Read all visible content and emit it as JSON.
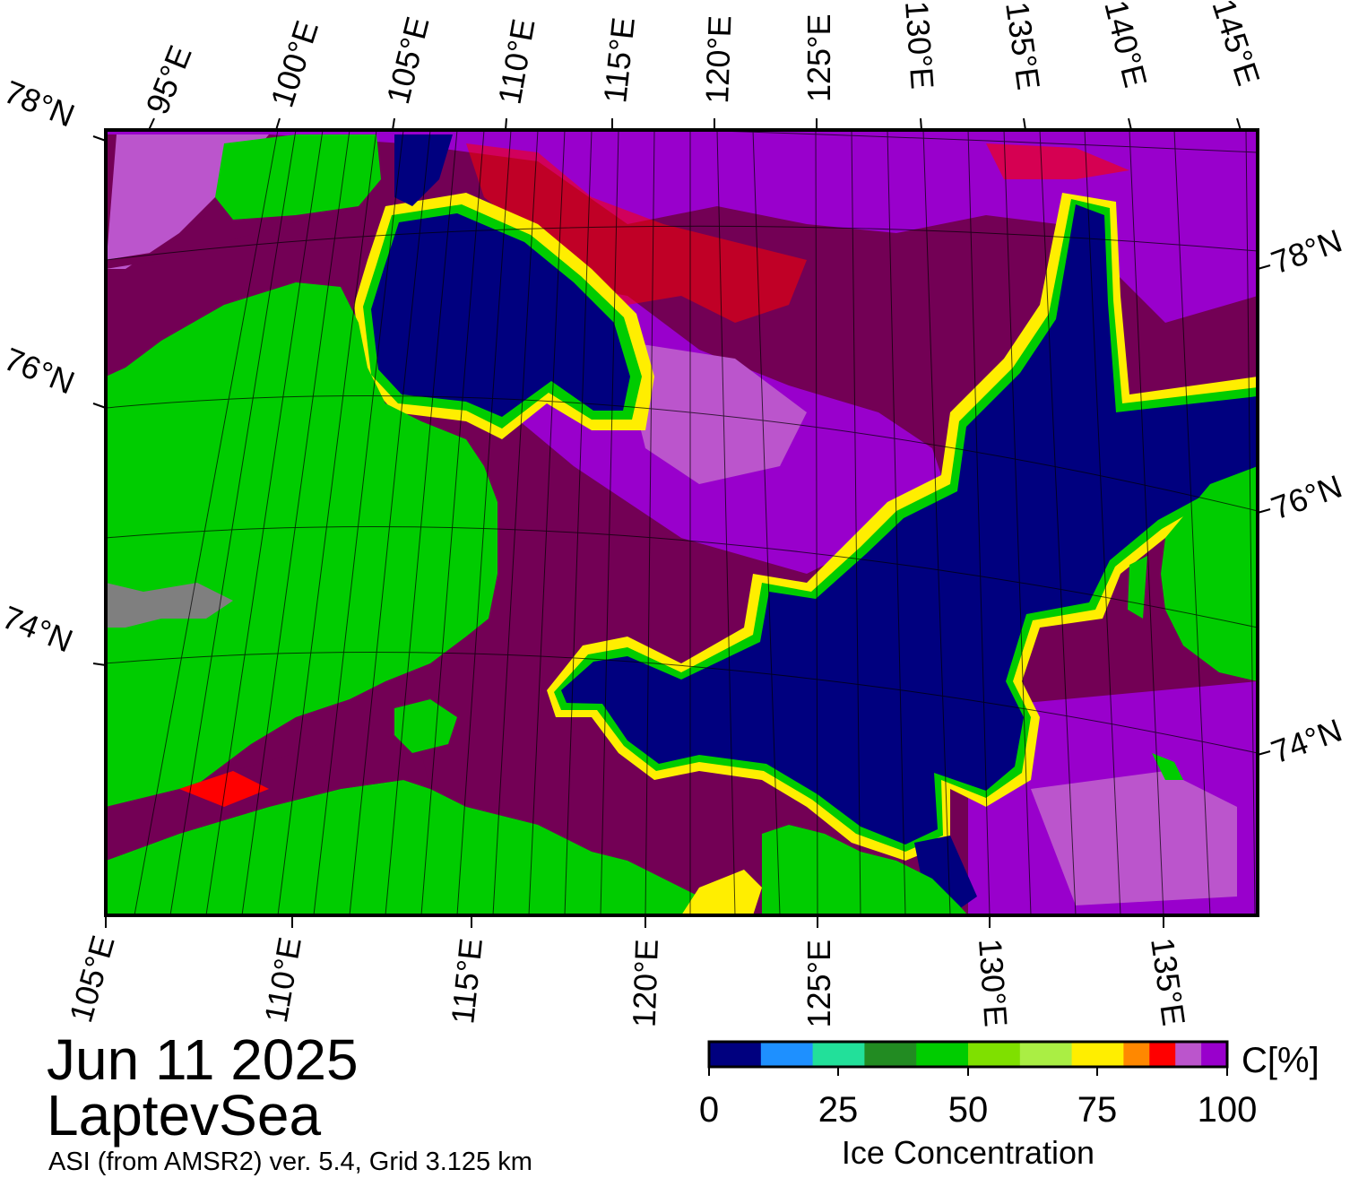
{
  "map": {
    "date": "Jun 11 2025",
    "region": "LaptevSea",
    "source_note": "ASI (from AMSR2) ver. 5.4,  Grid 3.125 km",
    "top_lon_labels": [
      "95°E",
      "100°E",
      "105°E",
      "110°E",
      "115°E",
      "120°E",
      "125°E",
      "130°E",
      "135°E",
      "140°E",
      "145°E"
    ],
    "bottom_lon_labels": [
      "105°E",
      "110°E",
      "115°E",
      "120°E",
      "125°E",
      "130°E",
      "135°E"
    ],
    "left_lat_labels": [
      "78°N",
      "76°N",
      "74°N"
    ],
    "right_lat_labels": [
      "78°N",
      "76°N",
      "74°N"
    ],
    "colors": {
      "open_water": "#00007f",
      "land": "#00cc00",
      "land_shadow": "#7f7f7f",
      "dense_ice": "#730055",
      "ice_95": "#9900cc",
      "ice_90": "#bb55cc"
    }
  },
  "colorbar": {
    "title": "Ice Concentration",
    "unit": "C[%]",
    "tick_labels": [
      "0",
      "25",
      "50",
      "75",
      "100"
    ],
    "colors": [
      "#00007f",
      "#1e90ff",
      "#22e09a",
      "#228b22",
      "#00cc00",
      "#7fe000",
      "#aaee44",
      "#ffee00",
      "#ff8800",
      "#ff0000",
      "#bb55cc",
      "#9900cc"
    ]
  }
}
